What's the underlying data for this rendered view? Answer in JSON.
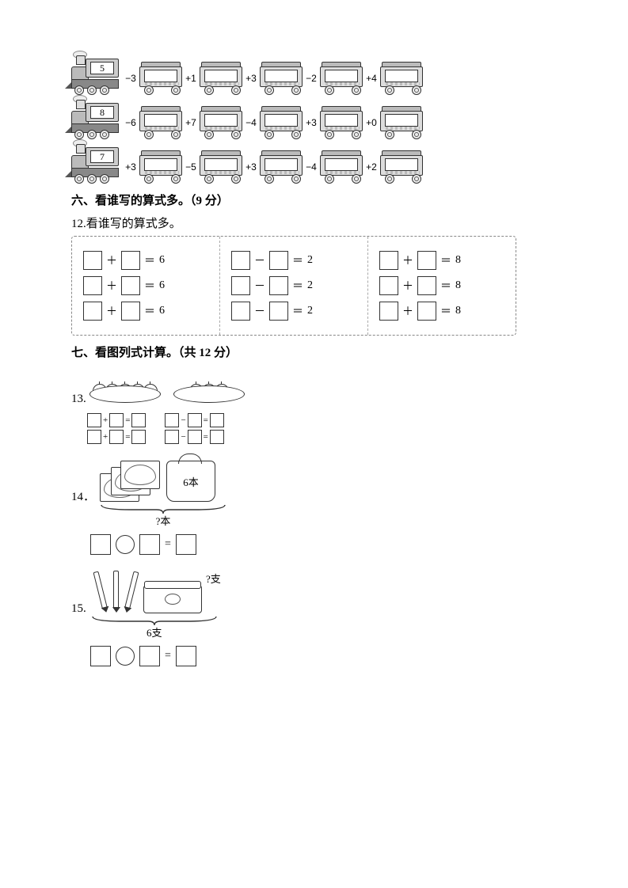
{
  "trains": [
    {
      "start": "5",
      "ops": [
        "−3",
        "+1",
        "+3",
        "−2",
        "+4"
      ]
    },
    {
      "start": "8",
      "ops": [
        "−6",
        "+7",
        "−4",
        "+3",
        "+0"
      ]
    },
    {
      "start": "7",
      "ops": [
        "+3",
        "−5",
        "+3",
        "−4",
        "+2"
      ]
    }
  ],
  "section6": {
    "title": "六、看谁写的算式多。（9 分）"
  },
  "q12": {
    "label": "12.看谁写的算式多。",
    "cols": [
      {
        "op": "＋",
        "result": "6"
      },
      {
        "op": "－",
        "result": "2"
      },
      {
        "op": "＋",
        "result": "8"
      }
    ],
    "rows_per_col": 3
  },
  "section7": {
    "title": "七、看图列式计算。（共 12 分）"
  },
  "q13": {
    "label": "13.",
    "plate1_apples": 5,
    "plate2_apples": 3,
    "left_ops": [
      "+",
      "+"
    ],
    "right_ops": [
      "−",
      "−"
    ]
  },
  "q14": {
    "label": "14．",
    "bag_text": "6本",
    "brace_text": "?本",
    "visible_books": 3
  },
  "q15": {
    "label": "15.",
    "question_text": "?支",
    "brace_text": "6支",
    "pen_count": 3
  }
}
